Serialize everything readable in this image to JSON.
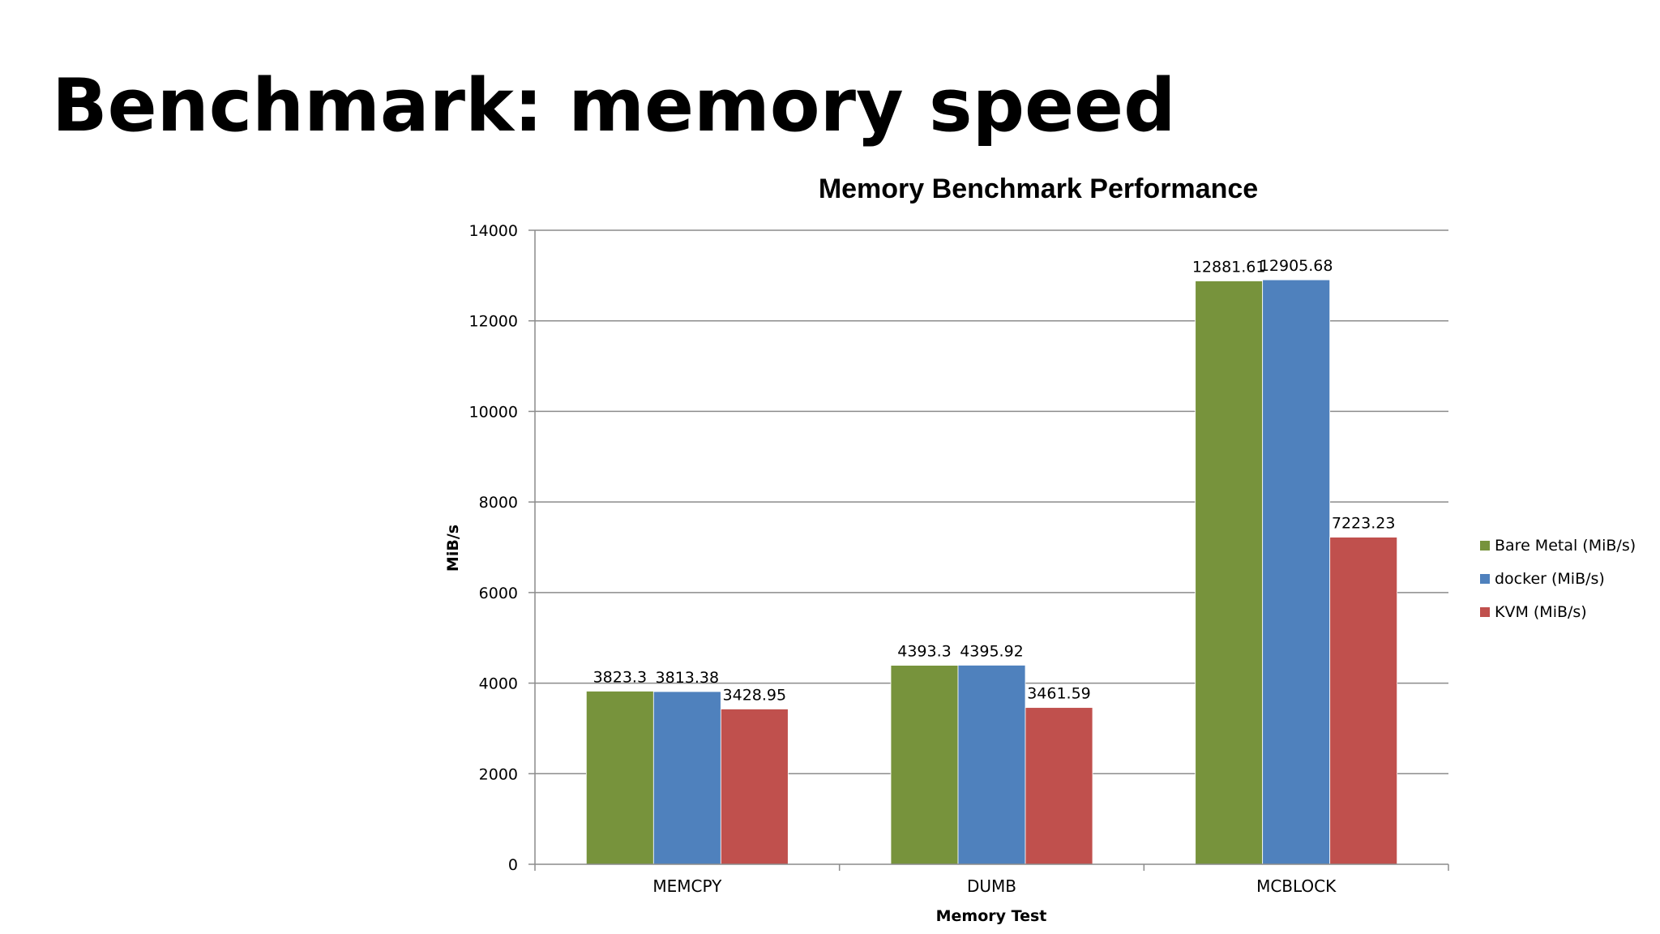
{
  "slide": {
    "title": "Benchmark: memory speed"
  },
  "chart_data": {
    "type": "bar",
    "title": "Memory Benchmark Performance",
    "xlabel": "Memory Test",
    "ylabel": "MiB/s",
    "ylim": [
      0,
      14000
    ],
    "yticks": [
      0,
      2000,
      4000,
      6000,
      8000,
      10000,
      12000,
      14000
    ],
    "grid": true,
    "legend_position": "right",
    "categories": [
      "MEMCPY",
      "DUMB",
      "MCBLOCK"
    ],
    "series": [
      {
        "name": "Bare Metal (MiB/s)",
        "color": "#77933C",
        "values": [
          3823.3,
          4393.3,
          12881.61
        ]
      },
      {
        "name": "docker (MiB/s)",
        "color": "#4F81BD",
        "values": [
          3813.38,
          4395.92,
          12905.68
        ]
      },
      {
        "name": "KVM (MiB/s)",
        "color": "#C0504D",
        "values": [
          3428.95,
          3461.59,
          7223.23
        ]
      }
    ],
    "data_labels": true
  }
}
